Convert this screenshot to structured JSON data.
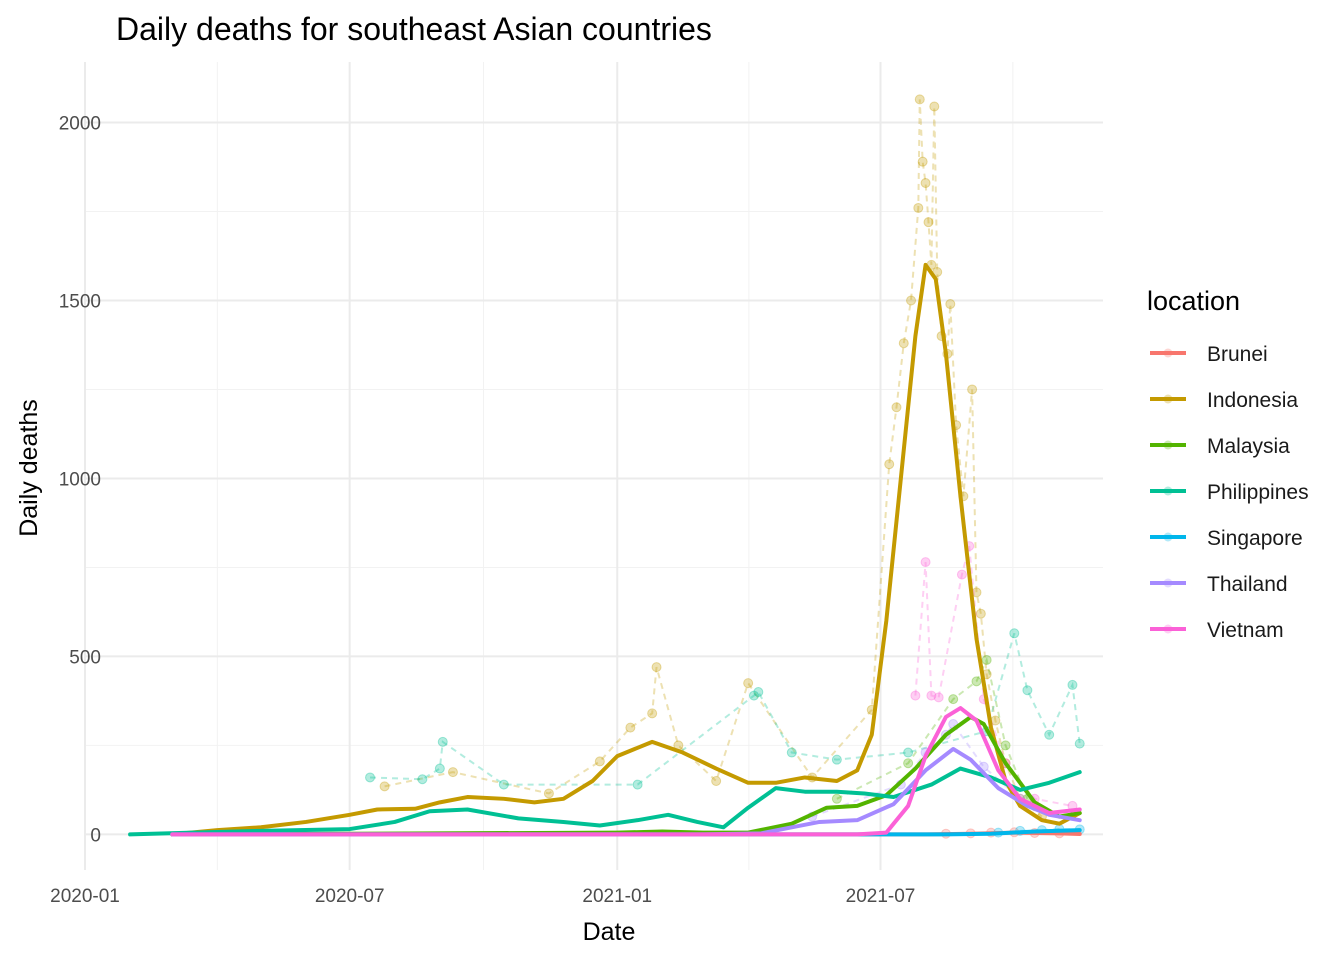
{
  "chart_data": {
    "type": "line",
    "title": "Daily deaths for southeast Asian countries",
    "xlabel": "Date",
    "ylabel": "Daily deaths",
    "xlim": [
      "2020-01-01",
      "2021-12-01"
    ],
    "ylim": [
      -100,
      2170
    ],
    "x_ticks": [
      "2020-01-01",
      "2020-07-01",
      "2021-01-01",
      "2021-07-01"
    ],
    "x_tick_labels": [
      "2020-01",
      "2020-07",
      "2021-01",
      "2021-07"
    ],
    "y_ticks": [
      0,
      500,
      1000,
      1500,
      2000
    ],
    "y_tick_labels": [
      "0",
      "500",
      "1000",
      "1500",
      "2000"
    ],
    "grid": true,
    "legend": {
      "title": "location",
      "position": "right"
    },
    "series": [
      {
        "name": "Brunei",
        "color": "#F8766D",
        "smooth": [
          [
            "2020-03-01",
            0
          ],
          [
            "2021-08-01",
            0
          ],
          [
            "2021-09-01",
            2
          ],
          [
            "2021-10-01",
            5
          ],
          [
            "2021-11-01",
            3
          ],
          [
            "2021-11-15",
            1
          ]
        ],
        "points": [
          [
            "2021-08-15",
            2
          ],
          [
            "2021-09-01",
            3
          ],
          [
            "2021-09-15",
            5
          ],
          [
            "2021-10-01",
            6
          ],
          [
            "2021-10-15",
            4
          ],
          [
            "2021-11-01",
            3
          ]
        ]
      },
      {
        "name": "Indonesia",
        "color": "#C49A00",
        "smooth": [
          [
            "2020-03-01",
            0
          ],
          [
            "2020-04-01",
            12
          ],
          [
            "2020-05-01",
            20
          ],
          [
            "2020-06-01",
            35
          ],
          [
            "2020-07-01",
            55
          ],
          [
            "2020-07-20",
            70
          ],
          [
            "2020-08-15",
            72
          ],
          [
            "2020-09-01",
            90
          ],
          [
            "2020-09-20",
            105
          ],
          [
            "2020-10-15",
            100
          ],
          [
            "2020-11-05",
            90
          ],
          [
            "2020-11-25",
            100
          ],
          [
            "2020-12-15",
            150
          ],
          [
            "2021-01-01",
            220
          ],
          [
            "2021-01-25",
            260
          ],
          [
            "2021-02-15",
            230
          ],
          [
            "2021-03-10",
            185
          ],
          [
            "2021-04-01",
            145
          ],
          [
            "2021-04-20",
            145
          ],
          [
            "2021-05-10",
            160
          ],
          [
            "2021-06-01",
            150
          ],
          [
            "2021-06-15",
            180
          ],
          [
            "2021-06-25",
            280
          ],
          [
            "2021-07-05",
            600
          ],
          [
            "2021-07-15",
            1000
          ],
          [
            "2021-07-25",
            1400
          ],
          [
            "2021-08-01",
            1600
          ],
          [
            "2021-08-08",
            1560
          ],
          [
            "2021-08-15",
            1350
          ],
          [
            "2021-08-25",
            950
          ],
          [
            "2021-09-05",
            550
          ],
          [
            "2021-09-15",
            300
          ],
          [
            "2021-09-25",
            150
          ],
          [
            "2021-10-05",
            80
          ],
          [
            "2021-10-20",
            40
          ],
          [
            "2021-11-01",
            30
          ],
          [
            "2021-11-15",
            60
          ]
        ],
        "points": [
          [
            "2020-07-25",
            135
          ],
          [
            "2020-09-10",
            175
          ],
          [
            "2020-11-15",
            115
          ],
          [
            "2020-12-20",
            205
          ],
          [
            "2021-01-10",
            300
          ],
          [
            "2021-01-25",
            340
          ],
          [
            "2021-01-28",
            470
          ],
          [
            "2021-02-12",
            250
          ],
          [
            "2021-03-10",
            150
          ],
          [
            "2021-04-01",
            425
          ],
          [
            "2021-05-15",
            160
          ],
          [
            "2021-06-25",
            350
          ],
          [
            "2021-07-07",
            1040
          ],
          [
            "2021-07-12",
            1200
          ],
          [
            "2021-07-17",
            1380
          ],
          [
            "2021-07-22",
            1500
          ],
          [
            "2021-07-27",
            1760
          ],
          [
            "2021-07-28",
            2065
          ],
          [
            "2021-07-30",
            1890
          ],
          [
            "2021-08-01",
            1830
          ],
          [
            "2021-08-03",
            1720
          ],
          [
            "2021-08-05",
            1600
          ],
          [
            "2021-08-07",
            2045
          ],
          [
            "2021-08-09",
            1580
          ],
          [
            "2021-08-12",
            1400
          ],
          [
            "2021-08-16",
            1350
          ],
          [
            "2021-08-18",
            1490
          ],
          [
            "2021-08-22",
            1150
          ],
          [
            "2021-08-27",
            950
          ],
          [
            "2021-09-02",
            1250
          ],
          [
            "2021-09-05",
            680
          ],
          [
            "2021-09-08",
            620
          ],
          [
            "2021-09-12",
            450
          ],
          [
            "2021-09-18",
            320
          ],
          [
            "2021-09-25",
            200
          ],
          [
            "2021-10-05",
            100
          ],
          [
            "2021-10-20",
            50
          ]
        ]
      },
      {
        "name": "Malaysia",
        "color": "#53B400",
        "smooth": [
          [
            "2020-03-01",
            0
          ],
          [
            "2021-01-01",
            5
          ],
          [
            "2021-02-01",
            8
          ],
          [
            "2021-03-01",
            5
          ],
          [
            "2021-04-01",
            5
          ],
          [
            "2021-05-01",
            30
          ],
          [
            "2021-05-25",
            75
          ],
          [
            "2021-06-15",
            80
          ],
          [
            "2021-07-05",
            110
          ],
          [
            "2021-07-25",
            185
          ],
          [
            "2021-08-15",
            280
          ],
          [
            "2021-09-01",
            330
          ],
          [
            "2021-09-10",
            310
          ],
          [
            "2021-09-25",
            200
          ],
          [
            "2021-10-15",
            90
          ],
          [
            "2021-11-01",
            50
          ],
          [
            "2021-11-15",
            60
          ]
        ],
        "points": [
          [
            "2021-06-01",
            100
          ],
          [
            "2021-07-20",
            200
          ],
          [
            "2021-08-20",
            380
          ],
          [
            "2021-09-05",
            430
          ],
          [
            "2021-09-12",
            490
          ],
          [
            "2021-09-25",
            250
          ],
          [
            "2021-10-10",
            100
          ]
        ]
      },
      {
        "name": "Philippines",
        "color": "#00C094",
        "smooth": [
          [
            "2020-02-01",
            0
          ],
          [
            "2020-03-15",
            5
          ],
          [
            "2020-05-01",
            10
          ],
          [
            "2020-07-01",
            15
          ],
          [
            "2020-08-01",
            35
          ],
          [
            "2020-08-25",
            65
          ],
          [
            "2020-09-20",
            70
          ],
          [
            "2020-10-25",
            45
          ],
          [
            "2020-11-25",
            35
          ],
          [
            "2020-12-20",
            25
          ],
          [
            "2021-01-15",
            40
          ],
          [
            "2021-02-05",
            55
          ],
          [
            "2021-02-25",
            35
          ],
          [
            "2021-03-15",
            20
          ],
          [
            "2021-04-01",
            75
          ],
          [
            "2021-04-20",
            130
          ],
          [
            "2021-05-10",
            120
          ],
          [
            "2021-06-01",
            120
          ],
          [
            "2021-06-20",
            115
          ],
          [
            "2021-07-10",
            105
          ],
          [
            "2021-08-05",
            140
          ],
          [
            "2021-08-25",
            185
          ],
          [
            "2021-09-15",
            160
          ],
          [
            "2021-10-05",
            125
          ],
          [
            "2021-10-25",
            145
          ],
          [
            "2021-11-15",
            175
          ]
        ],
        "points": [
          [
            "2020-07-15",
            160
          ],
          [
            "2020-08-20",
            155
          ],
          [
            "2020-09-03",
            260
          ],
          [
            "2020-09-01",
            185
          ],
          [
            "2020-10-15",
            140
          ],
          [
            "2021-01-15",
            140
          ],
          [
            "2021-04-05",
            390
          ],
          [
            "2021-04-08",
            400
          ],
          [
            "2021-05-01",
            230
          ],
          [
            "2021-06-01",
            210
          ],
          [
            "2021-07-20",
            230
          ],
          [
            "2021-09-12",
            290
          ],
          [
            "2021-10-01",
            565
          ],
          [
            "2021-10-10",
            405
          ],
          [
            "2021-10-25",
            280
          ],
          [
            "2021-11-10",
            420
          ],
          [
            "2021-11-15",
            255
          ]
        ]
      },
      {
        "name": "Singapore",
        "color": "#00B6EB",
        "smooth": [
          [
            "2020-03-01",
            0
          ],
          [
            "2021-08-15",
            0
          ],
          [
            "2021-09-15",
            2
          ],
          [
            "2021-10-15",
            8
          ],
          [
            "2021-11-15",
            12
          ]
        ],
        "points": [
          [
            "2021-09-20",
            5
          ],
          [
            "2021-10-05",
            10
          ],
          [
            "2021-10-20",
            12
          ],
          [
            "2021-11-01",
            15
          ],
          [
            "2021-11-15",
            14
          ]
        ]
      },
      {
        "name": "Thailand",
        "color": "#A58AFF",
        "smooth": [
          [
            "2020-03-01",
            0
          ],
          [
            "2021-03-01",
            0
          ],
          [
            "2021-04-10",
            3
          ],
          [
            "2021-05-01",
            20
          ],
          [
            "2021-05-20",
            35
          ],
          [
            "2021-06-15",
            40
          ],
          [
            "2021-07-10",
            85
          ],
          [
            "2021-08-01",
            180
          ],
          [
            "2021-08-20",
            240
          ],
          [
            "2021-09-01",
            210
          ],
          [
            "2021-09-20",
            130
          ],
          [
            "2021-10-10",
            80
          ],
          [
            "2021-10-25",
            55
          ],
          [
            "2021-11-15",
            40
          ]
        ],
        "points": [
          [
            "2021-05-15",
            50
          ],
          [
            "2021-07-15",
            140
          ],
          [
            "2021-08-01",
            230
          ],
          [
            "2021-08-15",
            280
          ],
          [
            "2021-08-20",
            310
          ],
          [
            "2021-09-10",
            190
          ],
          [
            "2021-10-05",
            100
          ]
        ]
      },
      {
        "name": "Vietnam",
        "color": "#FB61D7",
        "smooth": [
          [
            "2020-03-01",
            0
          ],
          [
            "2021-06-15",
            0
          ],
          [
            "2021-07-05",
            5
          ],
          [
            "2021-07-20",
            80
          ],
          [
            "2021-08-01",
            220
          ],
          [
            "2021-08-15",
            330
          ],
          [
            "2021-08-25",
            355
          ],
          [
            "2021-09-05",
            320
          ],
          [
            "2021-09-20",
            180
          ],
          [
            "2021-10-05",
            100
          ],
          [
            "2021-10-25",
            60
          ],
          [
            "2021-11-15",
            70
          ]
        ],
        "points": [
          [
            "2021-07-25",
            390
          ],
          [
            "2021-08-01",
            765
          ],
          [
            "2021-08-05",
            390
          ],
          [
            "2021-08-10",
            385
          ],
          [
            "2021-08-26",
            730
          ],
          [
            "2021-08-31",
            810
          ],
          [
            "2021-09-10",
            380
          ],
          [
            "2021-09-25",
            200
          ],
          [
            "2021-10-15",
            100
          ],
          [
            "2021-11-10",
            80
          ]
        ]
      }
    ]
  }
}
